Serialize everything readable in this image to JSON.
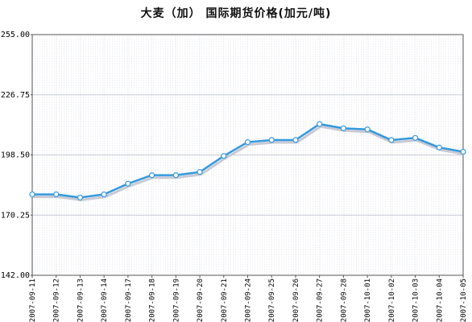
{
  "chart_data": {
    "type": "line",
    "title": "大麦（加）  国际期货价格(加元/吨)",
    "xlabel": "",
    "ylabel": "",
    "ylim": [
      142.0,
      255.0
    ],
    "yticks": [
      "142.00",
      "170.25",
      "198.50",
      "226.75",
      "255.00"
    ],
    "grid": true,
    "categories": [
      "2007-09-11",
      "2007-09-12",
      "2007-09-13",
      "2007-09-14",
      "2007-09-17",
      "2007-09-18",
      "2007-09-19",
      "2007-09-20",
      "2007-09-21",
      "2007-09-24",
      "2007-09-25",
      "2007-09-26",
      "2007-09-27",
      "2007-09-28",
      "2007-10-01",
      "2007-10-02",
      "2007-10-03",
      "2007-10-04",
      "2007-10-05"
    ],
    "series": [
      {
        "name": "",
        "values": [
          180.0,
          180.0,
          178.5,
          180.0,
          185.0,
          189.0,
          189.0,
          190.5,
          198.0,
          204.5,
          205.5,
          205.5,
          213.0,
          211.0,
          210.5,
          205.5,
          206.5,
          202.0,
          200.0
        ],
        "color": "#3399dd"
      }
    ]
  }
}
